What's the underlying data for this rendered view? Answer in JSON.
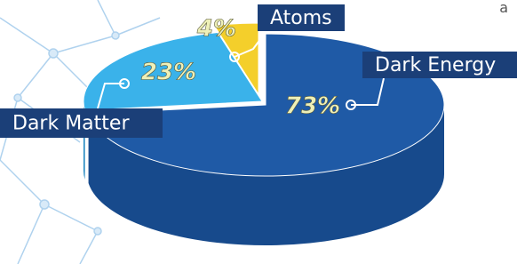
{
  "chart_data": {
    "type": "pie",
    "categories": [
      "Dark Energy",
      "Dark Matter",
      "Atoms"
    ],
    "values": [
      73,
      23,
      4
    ],
    "value_labels": [
      "73%",
      "23%",
      "4%"
    ],
    "colors": [
      "#1f5aa6",
      "#3ab2ea",
      "#f4cf2b"
    ],
    "annotations": [
      "a"
    ]
  }
}
